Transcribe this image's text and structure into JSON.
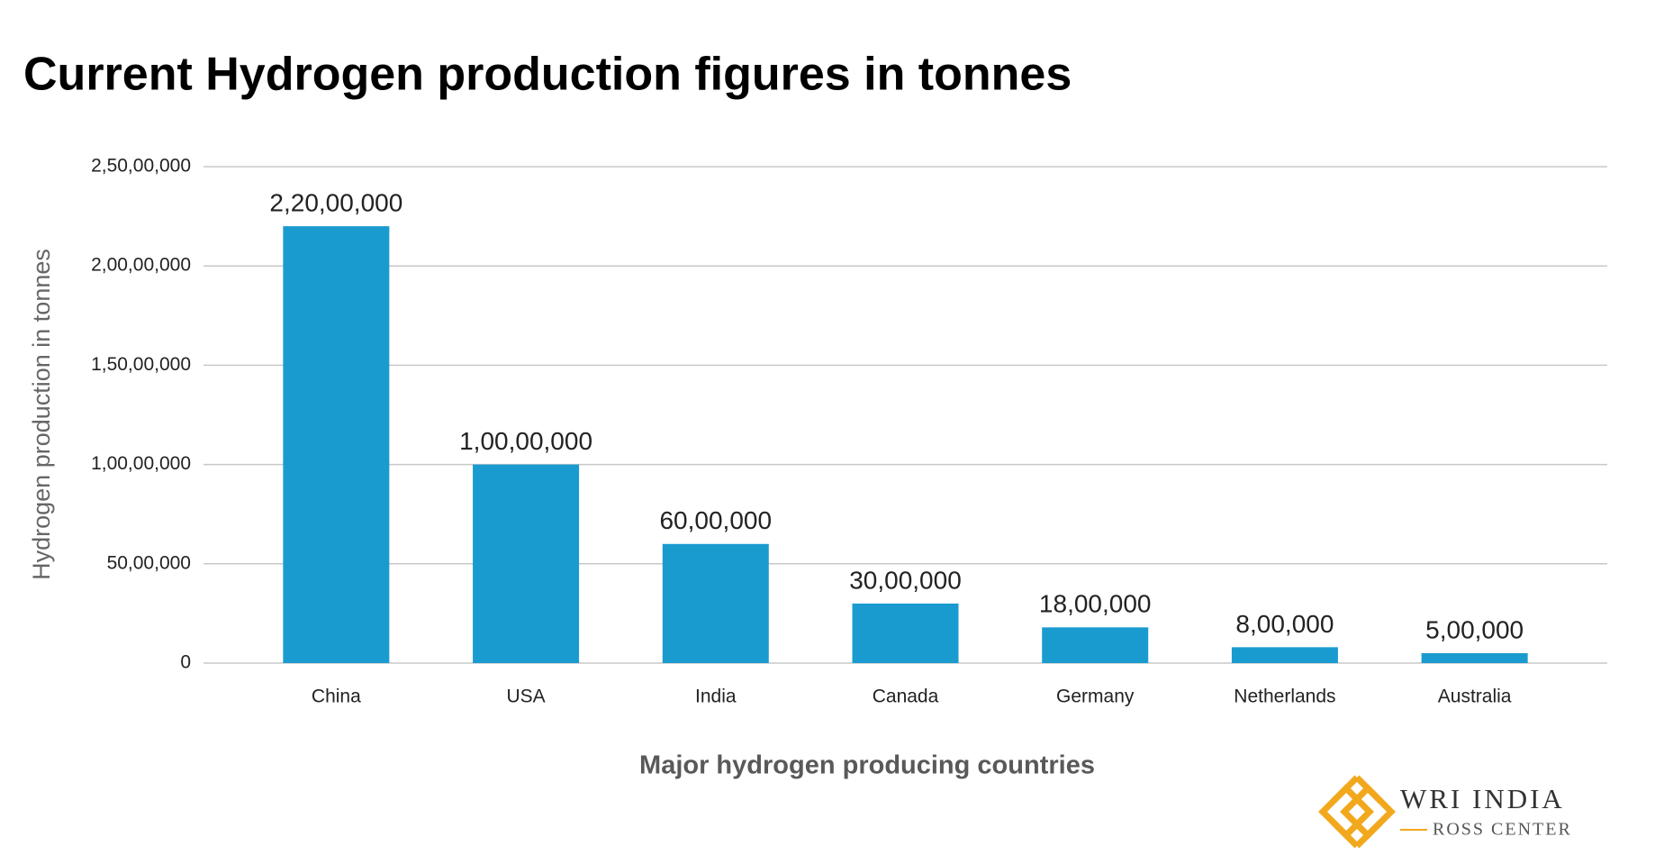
{
  "chart_data": {
    "type": "bar",
    "title": "Current Hydrogen production figures in tonnes",
    "x_label": "Major hydrogen producing countries",
    "y_label": "Hydrogen  production in tonnes",
    "categories": [
      "China",
      "USA",
      "India",
      "Canada",
      "Germany",
      "Netherlands",
      "Australia"
    ],
    "values": [
      22000000,
      10000000,
      6000000,
      3000000,
      1800000,
      800000,
      500000
    ],
    "value_labels": [
      "2,20,00,000",
      "1,00,00,000",
      "60,00,000",
      "30,00,000",
      "18,00,000",
      "8,00,000",
      "5,00,000"
    ],
    "color": "#1a9bd0",
    "ylim": [
      0,
      25000000
    ],
    "yticks": [
      0,
      {
        "value": 5000000,
        "label": "50,00,000"
      },
      {
        "value": 10000000,
        "label": "1,00,00,000"
      },
      {
        "value": 15000000,
        "label": "1,50,00,000"
      },
      {
        "value": 20000000,
        "label": "2,00,00,000"
      },
      {
        "value": 25000000,
        "label": "2,50,00,000"
      }
    ],
    "grid": true
  },
  "logo": {
    "name": "WRI INDIA",
    "subtitle": "ROSS CENTER"
  }
}
